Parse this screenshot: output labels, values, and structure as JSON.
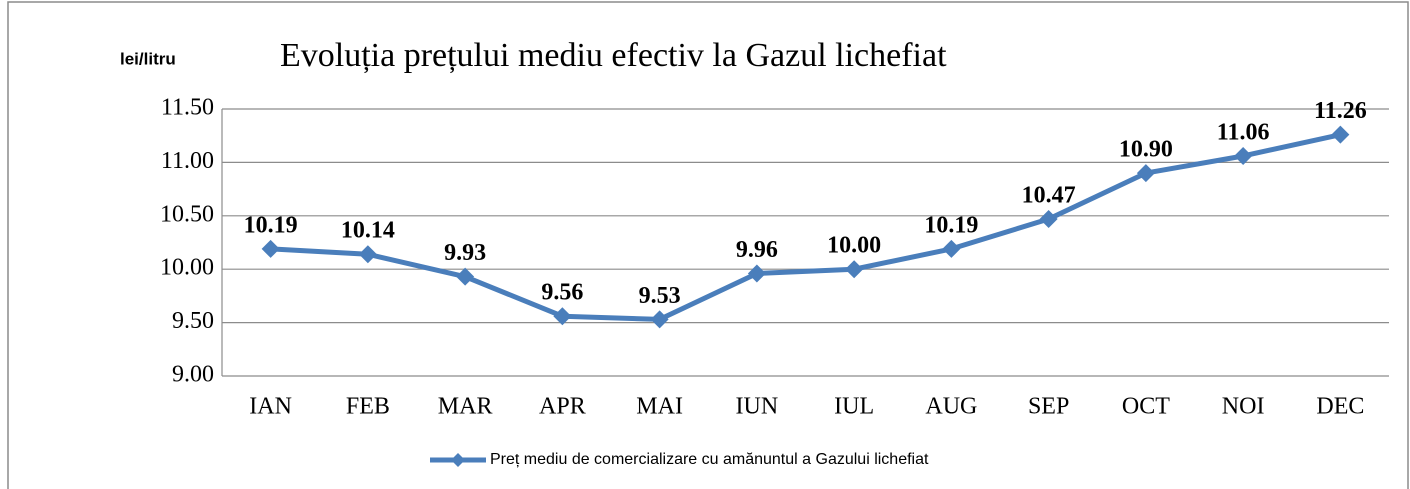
{
  "chart_data": {
    "type": "line",
    "title": "Evoluția prețului mediu efectiv la Gazul lichefiat",
    "y_label": "lei/litru",
    "categories": [
      "IAN",
      "FEB",
      "MAR",
      "APR",
      "MAI",
      "IUN",
      "IUL",
      "AUG",
      "SEP",
      "OCT",
      "NOI",
      "DEC"
    ],
    "series": [
      {
        "name": "Preț mediu de comercializare cu amănuntul a Gazului lichefiat",
        "color": "#4a7ebb",
        "values": [
          10.19,
          10.14,
          9.93,
          9.56,
          9.53,
          9.96,
          10.0,
          10.19,
          10.47,
          10.9,
          11.06,
          11.26
        ],
        "value_labels": [
          "10.19",
          "10.14",
          "9.93",
          "9.56",
          "9.53",
          "9.96",
          "10.00",
          "10.19",
          "10.47",
          "10.90",
          "11.06",
          "11.26"
        ]
      }
    ],
    "ylim": [
      9,
      11.5
    ],
    "yticks": [
      {
        "value": 9,
        "label": "9.00"
      },
      {
        "value": 9.5,
        "label": "9.50"
      },
      {
        "value": 10,
        "label": "10.00"
      },
      {
        "value": 10.5,
        "label": "10.50"
      },
      {
        "value": 11,
        "label": "11.00"
      },
      {
        "value": 11.5,
        "label": "11.50"
      }
    ],
    "grid": true,
    "legend": "bottom"
  }
}
